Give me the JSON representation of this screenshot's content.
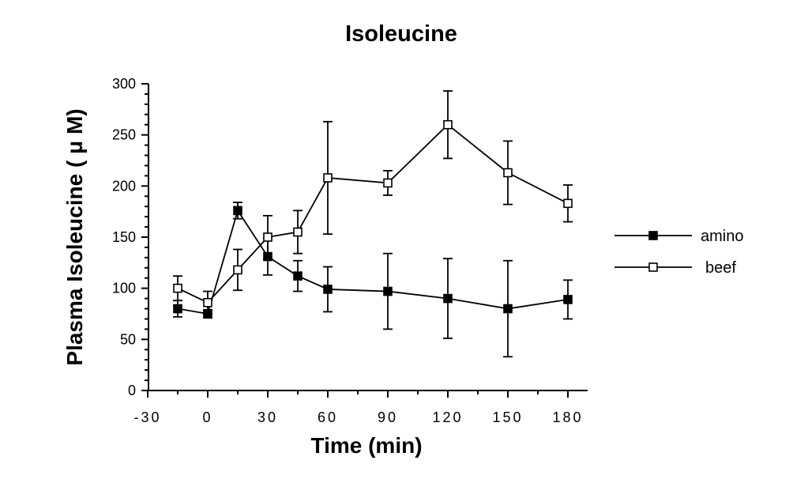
{
  "chart_data": {
    "type": "line",
    "title": "Isoleucine",
    "xlabel": "Time (min)",
    "ylabel": "Plasma Isoleucine ( μ M)",
    "xlim": [
      -30,
      195
    ],
    "ylim": [
      0,
      300
    ],
    "xticks": [
      -30,
      0,
      30,
      60,
      90,
      120,
      150,
      180
    ],
    "xtick_labels": [
      "-30",
      "0",
      "30",
      "60",
      "90",
      "120",
      "150",
      "180"
    ],
    "yticks": [
      0,
      50,
      100,
      150,
      200,
      250,
      300
    ],
    "ytick_labels": [
      "0",
      "50",
      "100",
      "150",
      "200",
      "250",
      "300"
    ],
    "legend_position": "right",
    "series": [
      {
        "name": "amino",
        "marker": "filled-square",
        "color": "#000000",
        "x": [
          -15,
          0,
          15,
          30,
          45,
          60,
          90,
          120,
          150,
          180
        ],
        "y": [
          80,
          75,
          176,
          131,
          112,
          99,
          97,
          90,
          80,
          89
        ],
        "err": [
          8,
          4,
          8,
          18,
          15,
          22,
          37,
          39,
          47,
          19
        ]
      },
      {
        "name": "beef",
        "marker": "open-square",
        "color": "#000000",
        "x": [
          -15,
          0,
          15,
          30,
          45,
          60,
          90,
          120,
          150,
          180
        ],
        "y": [
          100,
          86,
          118,
          150,
          155,
          208,
          203,
          260,
          213,
          183
        ],
        "err": [
          12,
          11,
          20,
          21,
          21,
          55,
          12,
          33,
          31,
          18
        ]
      }
    ]
  }
}
